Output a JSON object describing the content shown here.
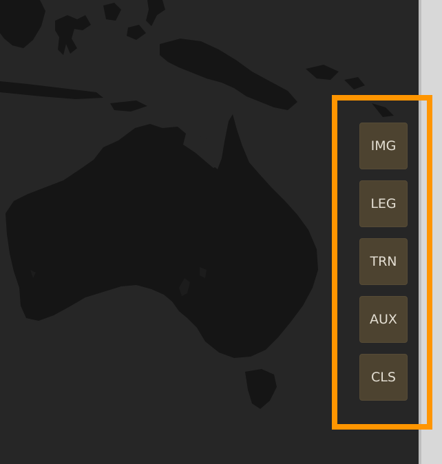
{
  "map": {
    "region": "Australia and Southeast Asia",
    "ocean_color": "#262626",
    "land_color": "#151515"
  },
  "toolbar": {
    "highlight_color": "#ff9500",
    "button_color": "#4d4330",
    "buttons": [
      {
        "label": "IMG"
      },
      {
        "label": "LEG"
      },
      {
        "label": "TRN"
      },
      {
        "label": "AUX"
      },
      {
        "label": "CLS"
      }
    ]
  }
}
